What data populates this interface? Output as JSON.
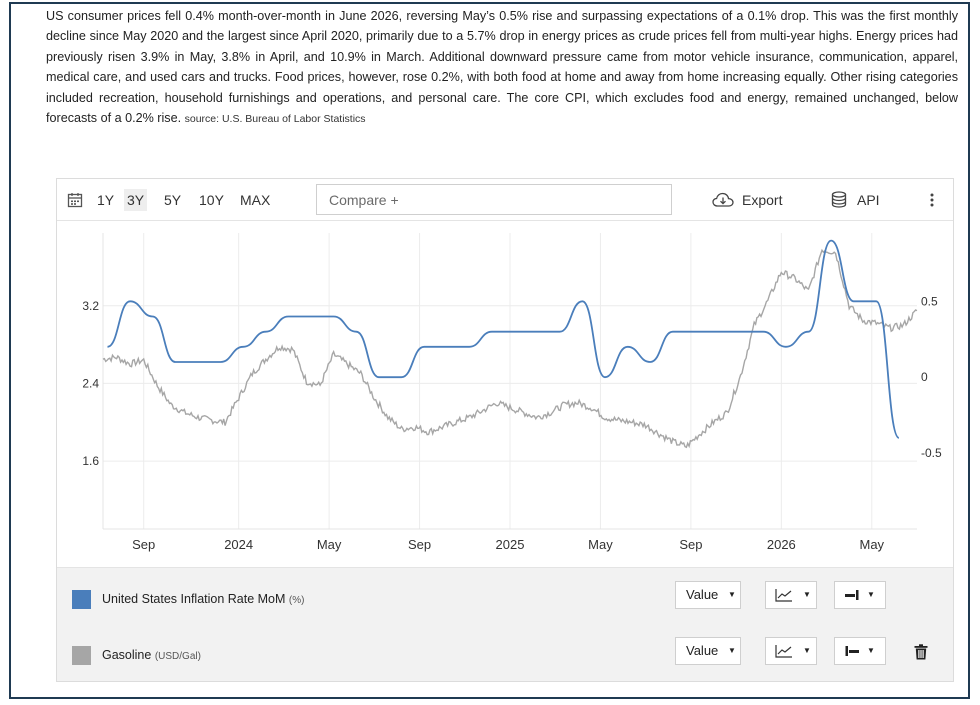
{
  "summary": {
    "text": "US consumer prices fell 0.4% month-over-month in June 2026, reversing May’s 0.5% rise and surpassing expectations of a 0.1% drop. This was the first monthly decline since May 2020 and the largest since April 2020, primarily due to a 5.7% drop in energy prices as crude prices fell from multi-year highs. Energy prices had previously risen 3.9% in May, 3.8% in April, and 10.9% in March. Additional downward pressure came from motor vehicle insurance, communication, apparel, medical care, and used cars and trucks. Food prices, however, rose 0.2%, with both food at home and away from home increasing equally. Other rising categories included recreation, household furnishings and operations, and personal care. The core CPI, which excludes food and energy, remained unchanged, below forecasts of a 0.2% rise.",
    "source": "source: U.S. Bureau of Labor Statistics"
  },
  "toolbar": {
    "ranges": [
      "1Y",
      "3Y",
      "5Y",
      "10Y",
      "MAX"
    ],
    "active_range": "3Y",
    "compare_placeholder": "Compare +",
    "export_label": "Export",
    "api_label": "API"
  },
  "chart_data": {
    "type": "line",
    "x_ticks": [
      "Sep",
      "2024",
      "May",
      "Sep",
      "2025",
      "May",
      "Sep",
      "2026",
      "May"
    ],
    "left_axis": {
      "ticks": [
        "3.2",
        "2.4",
        "1.6"
      ],
      "ylim": [
        0.9,
        3.95
      ]
    },
    "right_axis": {
      "ticks": [
        "0.5",
        "0",
        "-0.5"
      ],
      "ylim": [
        -1.0,
        0.95
      ]
    },
    "grid": true,
    "series": [
      {
        "name": "United States Inflation Rate MoM",
        "unit": "(%)",
        "axis": "right",
        "color": "#4a7ebb",
        "values": [
          0.2,
          0.5,
          0.4,
          0.1,
          0.1,
          0.1,
          0.2,
          0.3,
          0.4,
          0.4,
          0.4,
          0.3,
          0.0,
          0.0,
          0.2,
          0.2,
          0.2,
          0.3,
          0.3,
          0.3,
          0.3,
          0.5,
          0.0,
          0.2,
          0.1,
          0.3,
          0.3,
          0.3,
          0.3,
          0.3,
          0.2,
          0.3,
          0.9,
          0.5,
          0.5,
          -0.4
        ]
      },
      {
        "name": "Gasoline",
        "unit": "(USD/Gal)",
        "axis": "left",
        "color": "#a6a6a6",
        "x": [
          0,
          0.6,
          1.2,
          1.8,
          2.4,
          3.0,
          3.6,
          4.2,
          4.8,
          5.4,
          6.0,
          6.6,
          7.2,
          7.8,
          8.4,
          9.0,
          9.6,
          10.2,
          10.8,
          11.4,
          12.0,
          12.6,
          13.2,
          13.8,
          14.4,
          15.0,
          15.6,
          16.2,
          16.8,
          17.4,
          18.0,
          18.6,
          19.2,
          19.8,
          20.4,
          21.0,
          21.6,
          22.2,
          22.8,
          23.4,
          24.0,
          24.6,
          25.2,
          25.8,
          26.4,
          27.0,
          27.6,
          28.2,
          28.8,
          29.4,
          30.0,
          30.6,
          31.2,
          31.8,
          32.4,
          33.0,
          33.6,
          34.2,
          34.8,
          35.4,
          36.0
        ],
        "values": [
          2.65,
          2.67,
          2.6,
          2.64,
          2.38,
          2.18,
          2.1,
          2.05,
          2.02,
          2.0,
          2.25,
          2.5,
          2.65,
          2.78,
          2.75,
          2.42,
          2.38,
          2.7,
          2.6,
          2.5,
          2.25,
          2.05,
          1.93,
          1.95,
          1.9,
          1.95,
          2.0,
          2.05,
          2.12,
          2.2,
          2.15,
          2.1,
          2.05,
          2.1,
          2.18,
          2.2,
          2.15,
          2.05,
          2.02,
          2.0,
          1.97,
          1.88,
          1.8,
          1.75,
          1.88,
          2.0,
          2.1,
          2.48,
          3.0,
          3.25,
          3.55,
          3.48,
          3.35,
          3.78,
          3.75,
          3.2,
          3.05,
          3.02,
          2.97,
          3.0,
          3.15
        ]
      }
    ]
  },
  "legend": {
    "rows": [
      {
        "name": "United States Inflation Rate MoM",
        "unit": "(%)",
        "color": "#4a7ebb",
        "value_label": "Value"
      },
      {
        "name": "Gasoline",
        "unit": "(USD/Gal)",
        "color": "#a6a6a6",
        "value_label": "Value"
      }
    ]
  },
  "icons": [
    "calendar-icon",
    "cloud-download-icon",
    "database-icon",
    "more-vert-icon",
    "line-chart-icon",
    "axis-right-icon",
    "axis-left-icon",
    "trash-icon"
  ]
}
